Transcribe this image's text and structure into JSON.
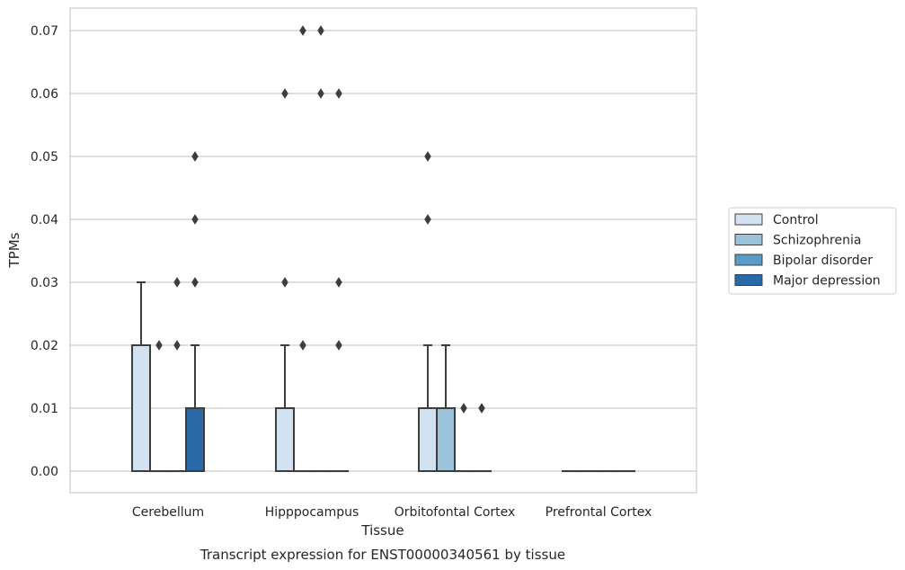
{
  "chart_data": {
    "type": "box",
    "title": "",
    "caption": "Transcript expression for ENST00000340561 by tissue",
    "xlabel": "Tissue",
    "ylabel": "TPMs",
    "ylim": [
      -0.0035,
      0.0735
    ],
    "yticks": [
      "0.00",
      "0.01",
      "0.02",
      "0.03",
      "0.04",
      "0.05",
      "0.06",
      "0.07"
    ],
    "grid": "horizontal",
    "legend_position": "right",
    "categories": [
      "Cerebellum",
      "Hipppocampus",
      "Orbitofontal Cortex",
      "Prefrontal Cortex"
    ],
    "series": [
      {
        "name": "Control",
        "color": "#d3e2f1",
        "boxes": [
          {
            "q1": 0,
            "median": 0,
            "q3": 0.02,
            "whislo": 0,
            "whishi": 0.03,
            "fliers": []
          },
          {
            "q1": 0,
            "median": 0,
            "q3": 0.01,
            "whislo": 0,
            "whishi": 0.02,
            "fliers": [
              0.06,
              0.03
            ]
          },
          {
            "q1": 0,
            "median": 0,
            "q3": 0.01,
            "whislo": 0,
            "whishi": 0.02,
            "fliers": [
              0.05,
              0.04
            ]
          },
          {
            "q1": 0,
            "median": 0,
            "q3": 0,
            "whislo": 0,
            "whishi": 0,
            "fliers": []
          }
        ]
      },
      {
        "name": "Schizophrenia",
        "color": "#9ac3da",
        "boxes": [
          {
            "q1": 0,
            "median": 0,
            "q3": 0,
            "whislo": 0,
            "whishi": 0,
            "fliers": [
              0.02
            ]
          },
          {
            "q1": 0,
            "median": 0,
            "q3": 0,
            "whislo": 0,
            "whishi": 0,
            "fliers": [
              0.07,
              0.02
            ]
          },
          {
            "q1": 0,
            "median": 0,
            "q3": 0.01,
            "whislo": 0,
            "whishi": 0.02,
            "fliers": []
          },
          {
            "q1": 0,
            "median": 0,
            "q3": 0,
            "whislo": 0,
            "whishi": 0,
            "fliers": []
          }
        ]
      },
      {
        "name": "Bipolar disorder",
        "color": "#5b9bc8",
        "boxes": [
          {
            "q1": 0,
            "median": 0,
            "q3": 0,
            "whislo": 0,
            "whishi": 0,
            "fliers": [
              0.03,
              0.02
            ]
          },
          {
            "q1": 0,
            "median": 0,
            "q3": 0,
            "whislo": 0,
            "whishi": 0,
            "fliers": [
              0.07,
              0.06
            ]
          },
          {
            "q1": 0,
            "median": 0,
            "q3": 0,
            "whislo": 0,
            "whishi": 0,
            "fliers": [
              0.01
            ]
          },
          {
            "q1": 0,
            "median": 0,
            "q3": 0,
            "whislo": 0,
            "whishi": 0,
            "fliers": []
          }
        ]
      },
      {
        "name": "Major depression",
        "color": "#2a69a8",
        "boxes": [
          {
            "q1": 0,
            "median": 0,
            "q3": 0.01,
            "whislo": 0,
            "whishi": 0.02,
            "fliers": [
              0.05,
              0.04,
              0.03
            ]
          },
          {
            "q1": 0,
            "median": 0,
            "q3": 0,
            "whislo": 0,
            "whishi": 0,
            "fliers": [
              0.06,
              0.03,
              0.02
            ]
          },
          {
            "q1": 0,
            "median": 0,
            "q3": 0,
            "whislo": 0,
            "whishi": 0,
            "fliers": [
              0.01
            ]
          },
          {
            "q1": 0,
            "median": 0,
            "q3": 0,
            "whislo": 0,
            "whishi": 0,
            "fliers": []
          }
        ]
      }
    ]
  }
}
